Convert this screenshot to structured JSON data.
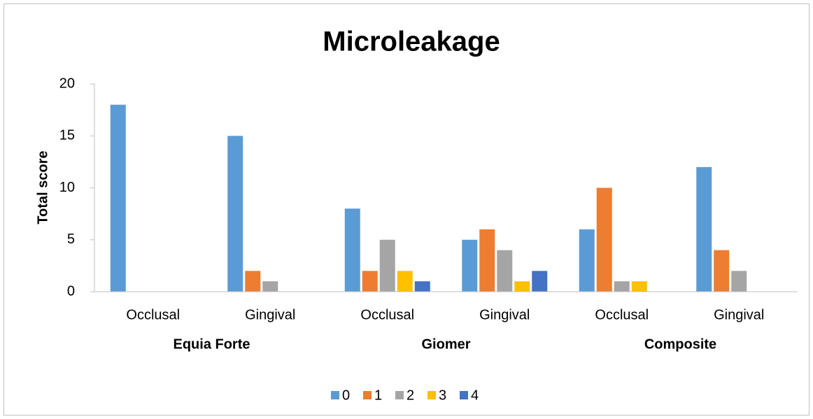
{
  "chart_data": {
    "type": "bar",
    "title": "Microleakage",
    "y_label": "Total score",
    "categories": [
      "Occlusal",
      "Gingival",
      "Occlusal",
      "Gingival",
      "Occlusal",
      "Gingival"
    ],
    "groups": [
      "Equia Forte",
      "Giomer",
      "Composite"
    ],
    "series": [
      {
        "name": "0",
        "color": "#5b9bd5",
        "values": [
          18,
          15,
          8,
          5,
          6,
          12
        ]
      },
      {
        "name": "1",
        "color": "#ed7d31",
        "values": [
          0,
          2,
          2,
          6,
          10,
          4
        ]
      },
      {
        "name": "2",
        "color": "#a5a5a5",
        "values": [
          0,
          1,
          5,
          4,
          1,
          2
        ]
      },
      {
        "name": "3",
        "color": "#ffc000",
        "values": [
          0,
          0,
          2,
          1,
          1,
          0
        ]
      },
      {
        "name": "4",
        "color": "#4472c4",
        "values": [
          0,
          0,
          1,
          2,
          0,
          0
        ]
      }
    ],
    "ylim": [
      0,
      20
    ],
    "yticks": [
      0,
      5,
      10,
      15,
      20
    ],
    "legend": "bottom",
    "grid": false
  }
}
